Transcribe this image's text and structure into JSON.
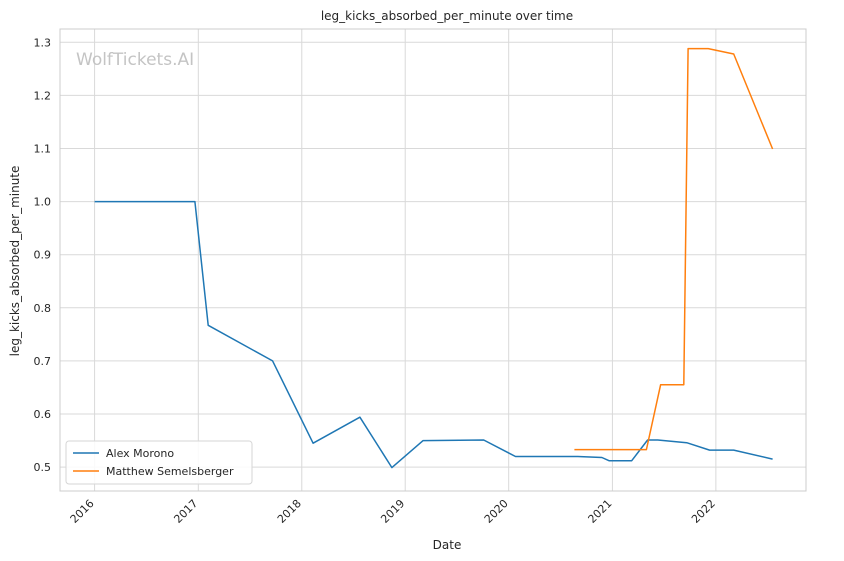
{
  "chart_data": {
    "type": "line",
    "title": "leg_kicks_absorbed_per_minute over time",
    "xlabel": "Date",
    "ylabel": "leg_kicks_absorbed_per_minute",
    "watermark": "WolfTickets.AI",
    "xlim": [
      "2015-09-01",
      "2022-11-15"
    ],
    "ylim": [
      0.455,
      1.325
    ],
    "x_ticks": [
      "2016-01-01",
      "2017-01-01",
      "2018-01-01",
      "2019-01-01",
      "2020-01-01",
      "2021-01-01",
      "2022-01-01"
    ],
    "x_tick_labels": [
      "2016",
      "2017",
      "2018",
      "2019",
      "2020",
      "2021",
      "2022"
    ],
    "y_ticks": [
      0.5,
      0.6,
      0.7,
      0.8,
      0.9,
      1.0,
      1.1,
      1.2,
      1.3
    ],
    "y_tick_labels": [
      "0.5",
      "0.6",
      "0.7",
      "0.8",
      "0.9",
      "1.0",
      "1.1",
      "1.2",
      "1.3"
    ],
    "grid": true,
    "legend_position": "lower-left",
    "series": [
      {
        "name": "Alex Morono",
        "color": "#1f77b4",
        "points": [
          [
            "2016-01-01",
            1.0
          ],
          [
            "2016-12-20",
            1.0
          ],
          [
            "2017-02-05",
            0.767
          ],
          [
            "2017-09-20",
            0.7
          ],
          [
            "2018-02-10",
            0.545
          ],
          [
            "2018-07-25",
            0.594
          ],
          [
            "2018-11-15",
            0.499
          ],
          [
            "2019-03-05",
            0.55
          ],
          [
            "2019-10-05",
            0.551
          ],
          [
            "2020-01-25",
            0.52
          ],
          [
            "2020-09-01",
            0.52
          ],
          [
            "2020-11-25",
            0.518
          ],
          [
            "2020-12-20",
            0.512
          ],
          [
            "2021-03-10",
            0.512
          ],
          [
            "2021-05-05",
            0.551
          ],
          [
            "2021-06-10",
            0.551
          ],
          [
            "2021-09-20",
            0.546
          ],
          [
            "2021-12-10",
            0.532
          ],
          [
            "2022-03-05",
            0.532
          ],
          [
            "2022-07-20",
            0.515
          ]
        ]
      },
      {
        "name": "Matthew Semelsberger",
        "color": "#ff7f0e",
        "points": [
          [
            "2020-08-20",
            0.533
          ],
          [
            "2021-05-01",
            0.533
          ],
          [
            "2021-06-20",
            0.655
          ],
          [
            "2021-09-10",
            0.655
          ],
          [
            "2021-09-25",
            1.288
          ],
          [
            "2021-12-05",
            1.288
          ],
          [
            "2022-03-05",
            1.278
          ],
          [
            "2022-07-20",
            1.099
          ]
        ]
      }
    ]
  }
}
